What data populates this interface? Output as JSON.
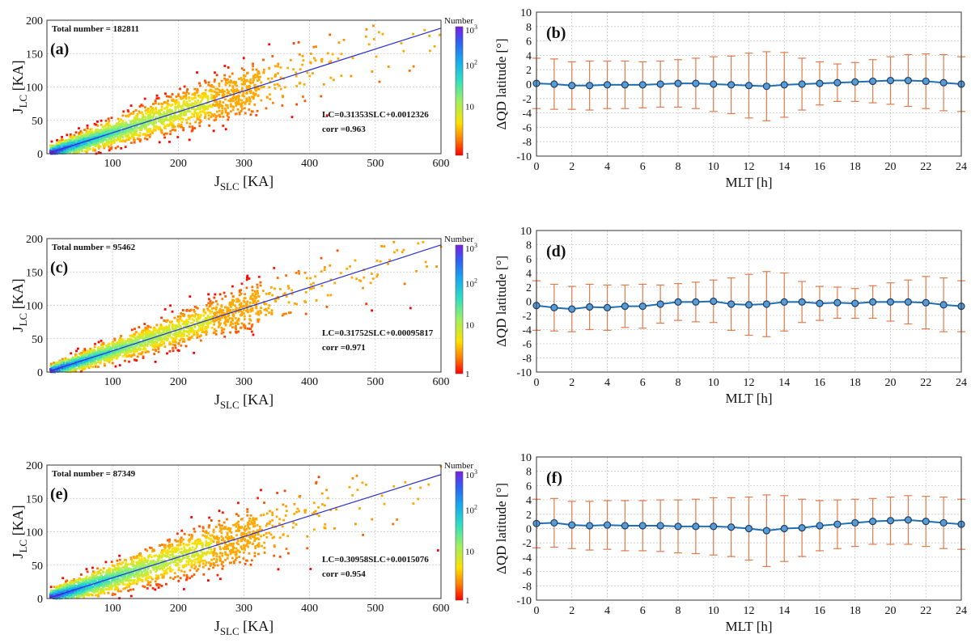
{
  "chart_data": [
    {
      "type": "scatter",
      "panel_label": "(a)",
      "total_label": "Total number = 182811",
      "fit_label": "LC=0.31353SLC+0.0012326",
      "corr_label": "corr =0.963",
      "xlabel_main": "J",
      "xlabel_sub": "SLC",
      "xlabel_unit": " [KA]",
      "ylabel_main": "J",
      "ylabel_sub": "LC",
      "ylabel_unit": " [KA]",
      "xlim": [
        0,
        600
      ],
      "ylim": [
        0,
        200
      ],
      "xticks": [
        "100",
        "200",
        "300",
        "400",
        "500",
        "600"
      ],
      "yticks": [
        "0",
        "50",
        "100",
        "150",
        "200"
      ],
      "fit": {
        "slope": 0.31353,
        "intercept": 0.0012326
      },
      "spread_scale": 1.0,
      "colorbar": {
        "title": "Number",
        "labels": [
          "1",
          "10",
          "10",
          "10"
        ],
        "sups": [
          "",
          "",
          "2",
          "3"
        ]
      }
    },
    {
      "type": "line",
      "panel_label": "(b)",
      "xlabel": "MLT [h]",
      "ylabel": "ΔQD latitude [°]",
      "xlim": [
        0,
        24
      ],
      "ylim": [
        -10,
        10
      ],
      "xticks": [
        "0",
        "2",
        "4",
        "6",
        "8",
        "10",
        "12",
        "14",
        "16",
        "18",
        "20",
        "22",
        "24"
      ],
      "yticks": [
        "-10",
        "-8",
        "-6",
        "-4",
        "-2",
        "0",
        "2",
        "4",
        "6",
        "8",
        "10"
      ],
      "x": [
        0,
        1,
        2,
        3,
        4,
        5,
        6,
        7,
        8,
        9,
        10,
        11,
        12,
        13,
        14,
        15,
        16,
        17,
        18,
        19,
        20,
        21,
        22,
        23,
        24
      ],
      "mean": [
        0.1,
        0.0,
        -0.2,
        -0.2,
        -0.1,
        -0.1,
        -0.1,
        0.0,
        0.1,
        0.1,
        0.0,
        -0.1,
        -0.2,
        -0.3,
        -0.1,
        0.0,
        0.1,
        0.2,
        0.3,
        0.4,
        0.5,
        0.5,
        0.4,
        0.2,
        0.0
      ],
      "err": [
        3.5,
        3.5,
        3.3,
        3.4,
        3.3,
        3.3,
        3.2,
        3.2,
        3.3,
        3.5,
        3.8,
        4.0,
        4.5,
        4.8,
        4.5,
        3.6,
        3.0,
        2.6,
        2.7,
        3.0,
        3.3,
        3.6,
        3.8,
        3.9,
        3.8
      ]
    },
    {
      "type": "scatter",
      "panel_label": "(c)",
      "total_label": "Total number = 95462",
      "fit_label": "LC=0.31752SLC+0.00095817",
      "corr_label": "corr =0.971",
      "xlabel_main": "J",
      "xlabel_sub": "SLC",
      "xlabel_unit": " [KA]",
      "ylabel_main": "J",
      "ylabel_sub": "LC",
      "ylabel_unit": " [KA]",
      "xlim": [
        0,
        600
      ],
      "ylim": [
        0,
        200
      ],
      "xticks": [
        "100",
        "200",
        "300",
        "400",
        "500",
        "600"
      ],
      "yticks": [
        "0",
        "50",
        "100",
        "150",
        "200"
      ],
      "fit": {
        "slope": 0.31752,
        "intercept": 0.00095817
      },
      "spread_scale": 0.85,
      "colorbar": {
        "title": "Number",
        "labels": [
          "1",
          "10",
          "10",
          "10"
        ],
        "sups": [
          "",
          "",
          "2",
          "3"
        ]
      }
    },
    {
      "type": "line",
      "panel_label": "(d)",
      "xlabel": "MLT [h]",
      "ylabel": "ΔQD latitude [°]",
      "xlim": [
        0,
        24
      ],
      "ylim": [
        -10,
        10
      ],
      "xticks": [
        "0",
        "2",
        "4",
        "6",
        "8",
        "10",
        "12",
        "14",
        "16",
        "18",
        "20",
        "22",
        "24"
      ],
      "yticks": [
        "-10",
        "-8",
        "-6",
        "-4",
        "-2",
        "0",
        "2",
        "4",
        "6",
        "8",
        "10"
      ],
      "x": [
        0,
        1,
        2,
        3,
        4,
        5,
        6,
        7,
        8,
        9,
        10,
        11,
        12,
        13,
        14,
        15,
        16,
        17,
        18,
        19,
        20,
        21,
        22,
        23,
        24
      ],
      "mean": [
        -0.6,
        -0.9,
        -1.1,
        -0.8,
        -0.9,
        -0.7,
        -0.7,
        -0.4,
        -0.1,
        -0.1,
        0.0,
        -0.4,
        -0.5,
        -0.4,
        -0.1,
        -0.1,
        -0.3,
        -0.2,
        -0.3,
        -0.1,
        -0.1,
        -0.1,
        -0.2,
        -0.5,
        -0.7
      ],
      "err": [
        3.5,
        3.3,
        3.2,
        3.2,
        3.2,
        3.0,
        3.1,
        2.7,
        2.6,
        2.8,
        3.0,
        3.7,
        4.3,
        4.6,
        4.1,
        2.9,
        2.4,
        2.2,
        2.1,
        2.3,
        2.7,
        3.1,
        3.7,
        3.8,
        3.6
      ]
    },
    {
      "type": "scatter",
      "panel_label": "(e)",
      "total_label": "Total number = 87349",
      "fit_label": "LC=0.30958SLC+0.0015076",
      "corr_label": "corr =0.954",
      "xlabel_main": "J",
      "xlabel_sub": "SLC",
      "xlabel_unit": " [KA]",
      "ylabel_main": "J",
      "ylabel_sub": "LC",
      "ylabel_unit": " [KA]",
      "xlim": [
        0,
        600
      ],
      "ylim": [
        0,
        200
      ],
      "xticks": [
        "100",
        "200",
        "300",
        "400",
        "500",
        "600"
      ],
      "yticks": [
        "0",
        "50",
        "100",
        "150",
        "200"
      ],
      "fit": {
        "slope": 0.30958,
        "intercept": 0.0015076
      },
      "spread_scale": 1.1,
      "colorbar": {
        "title": "Number",
        "labels": [
          "1",
          "10",
          "10",
          "10"
        ],
        "sups": [
          "",
          "",
          "2",
          "3"
        ]
      }
    },
    {
      "type": "line",
      "panel_label": "(f)",
      "xlabel": "MLT [h]",
      "ylabel": "ΔQD latitude [°]",
      "xlim": [
        0,
        24
      ],
      "ylim": [
        -10,
        10
      ],
      "xticks": [
        "0",
        "2",
        "4",
        "6",
        "8",
        "10",
        "12",
        "14",
        "16",
        "18",
        "20",
        "22",
        "24"
      ],
      "yticks": [
        "-10",
        "-8",
        "-6",
        "-4",
        "-2",
        "0",
        "2",
        "4",
        "6",
        "8",
        "10"
      ],
      "x": [
        0,
        1,
        2,
        3,
        4,
        5,
        6,
        7,
        8,
        9,
        10,
        11,
        12,
        13,
        14,
        15,
        16,
        17,
        18,
        19,
        20,
        21,
        22,
        23,
        24
      ],
      "mean": [
        0.7,
        0.8,
        0.5,
        0.4,
        0.5,
        0.4,
        0.4,
        0.4,
        0.3,
        0.3,
        0.3,
        0.2,
        0.0,
        -0.3,
        0.0,
        0.1,
        0.4,
        0.6,
        0.8,
        1.0,
        1.1,
        1.2,
        1.0,
        0.8,
        0.6
      ],
      "err": [
        3.4,
        3.4,
        3.3,
        3.4,
        3.4,
        3.5,
        3.5,
        3.6,
        3.7,
        3.8,
        4.0,
        4.1,
        4.4,
        5.0,
        4.6,
        4.0,
        3.5,
        3.4,
        3.3,
        3.2,
        3.3,
        3.4,
        3.5,
        3.6,
        3.5
      ]
    }
  ],
  "colors": {
    "fit_line": "#2b2fd0",
    "series": "#1f6fb2",
    "errorbar": "#e07b4a",
    "grid": "#c8c8c8",
    "axis": "#333333"
  }
}
